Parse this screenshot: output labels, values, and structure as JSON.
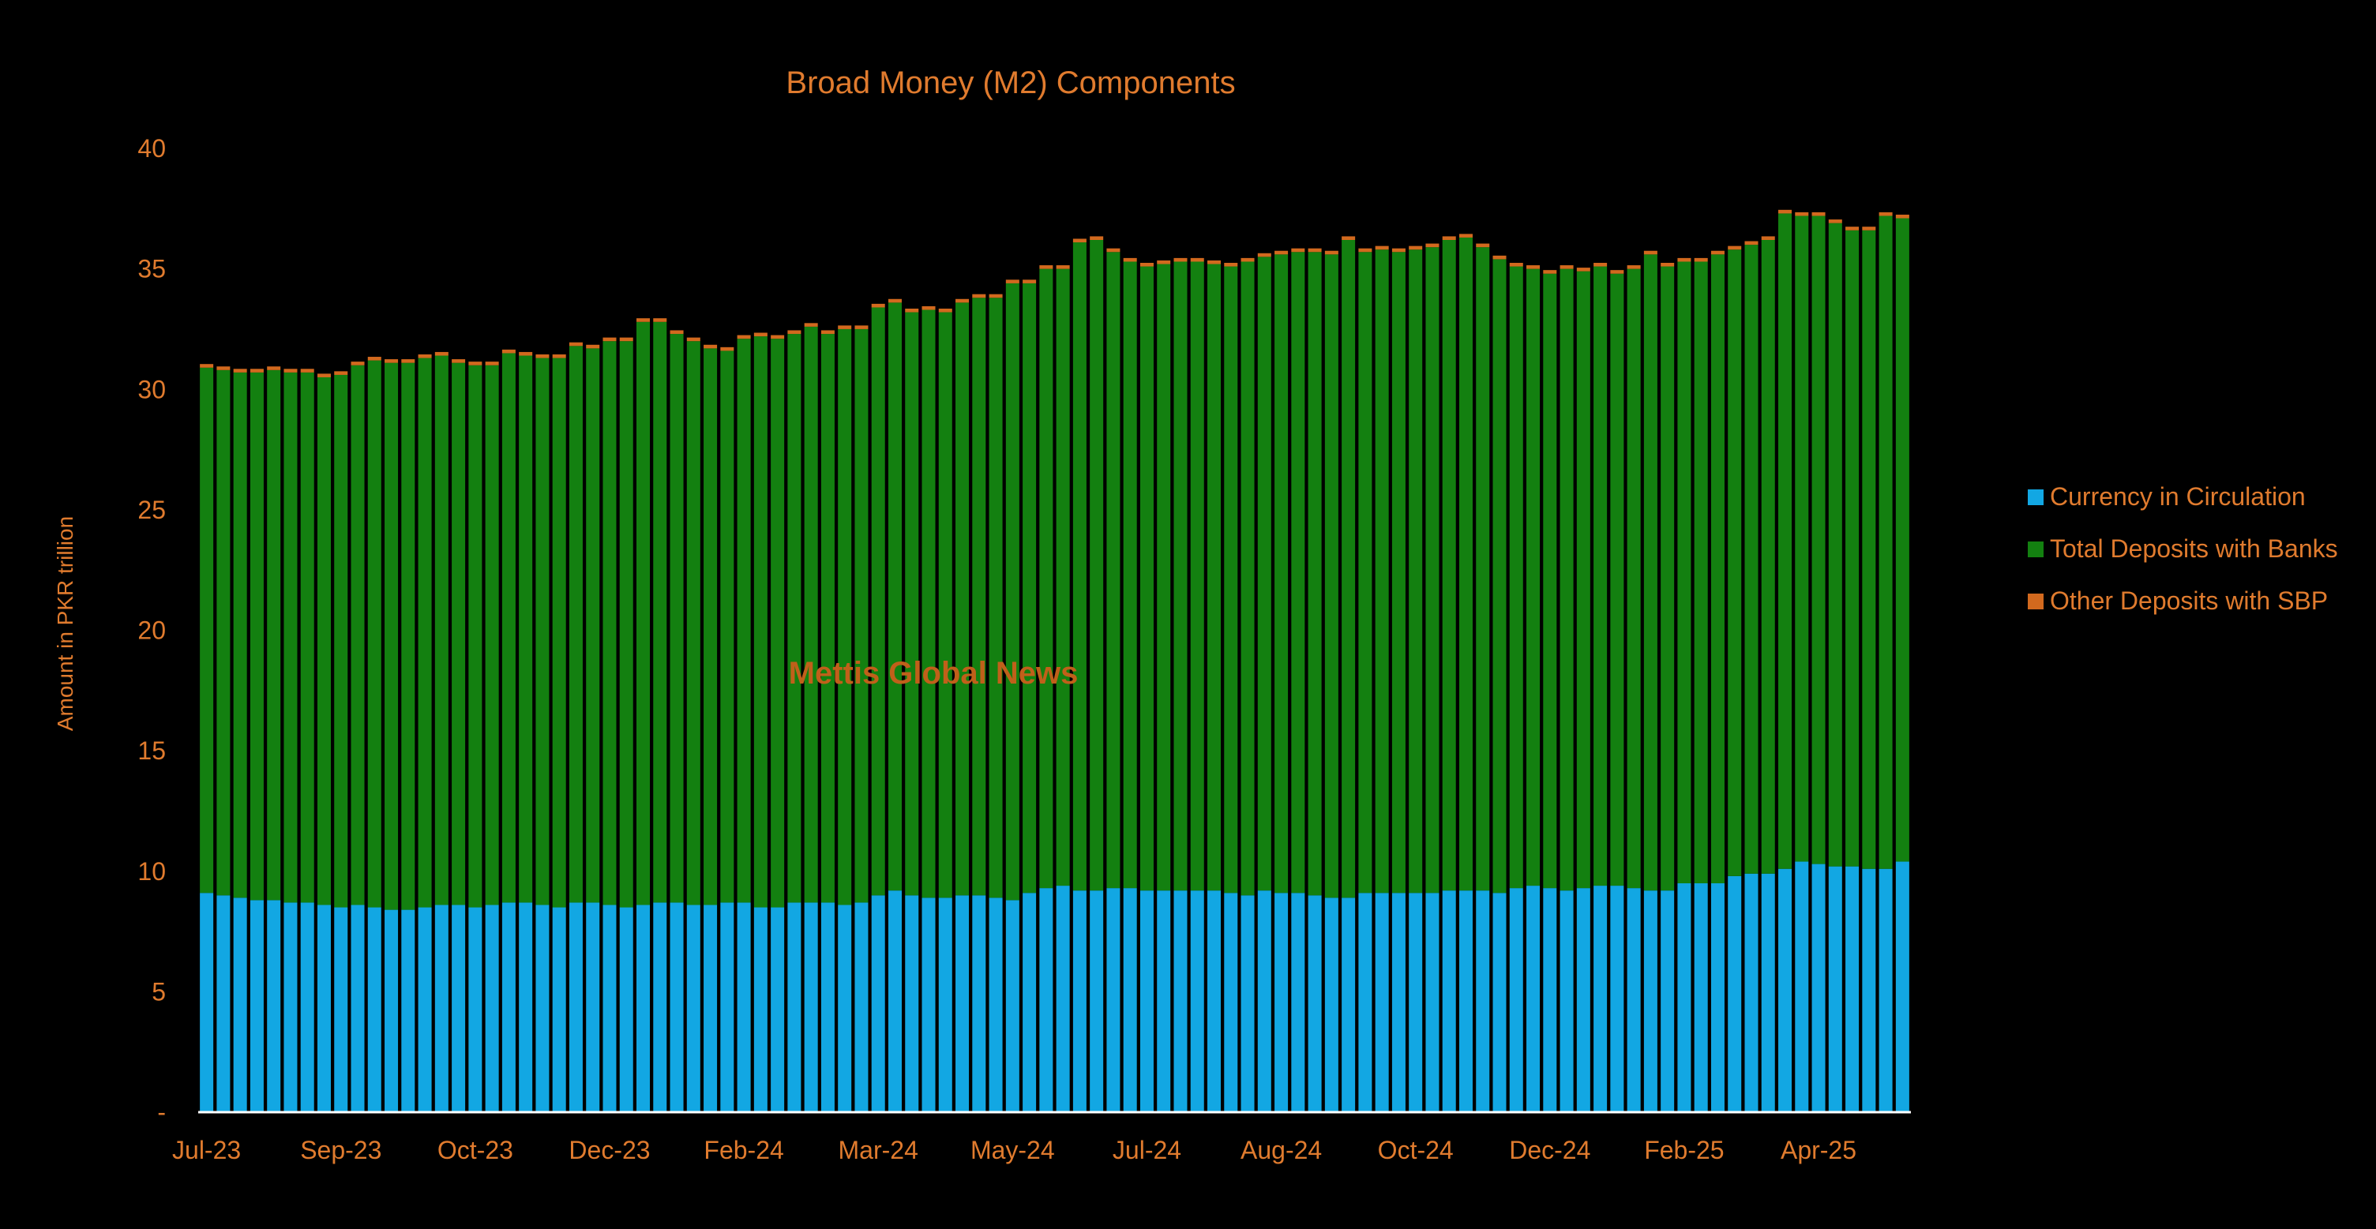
{
  "chart_data": {
    "type": "bar",
    "stacked": true,
    "title": "Broad Money (M2) Components",
    "ylabel": "Amount in PKR trillion",
    "xlabel": "",
    "ylim": [
      0,
      40
    ],
    "y_ticks": [
      "-",
      "5",
      "10",
      "15",
      "20",
      "25",
      "30",
      "35",
      "40"
    ],
    "x_tick_labels": [
      "Jul-23",
      "Sep-23",
      "Oct-23",
      "Dec-23",
      "Feb-24",
      "Mar-24",
      "May-24",
      "Jul-24",
      "Aug-24",
      "Oct-24",
      "Dec-24",
      "Feb-25",
      "Apr-25"
    ],
    "x_tick_positions": [
      0,
      8,
      16,
      24,
      32,
      40,
      48,
      56,
      64,
      72,
      80,
      88,
      96
    ],
    "legend_position": "right",
    "watermark": "Mettis Global News",
    "colors": {
      "background": "#000000",
      "text": "#E07B2E",
      "watermark": "#C0601A",
      "axis_line": "#FFFFFF"
    },
    "series": [
      {
        "name": "Currency in Circulation",
        "color": "#12A7E3",
        "values": [
          9.1,
          9.0,
          8.9,
          8.8,
          8.8,
          8.7,
          8.7,
          8.6,
          8.5,
          8.6,
          8.5,
          8.4,
          8.4,
          8.5,
          8.6,
          8.6,
          8.5,
          8.6,
          8.7,
          8.7,
          8.6,
          8.5,
          8.7,
          8.7,
          8.6,
          8.5,
          8.6,
          8.7,
          8.7,
          8.6,
          8.6,
          8.7,
          8.7,
          8.5,
          8.5,
          8.7,
          8.7,
          8.7,
          8.6,
          8.7,
          9.0,
          9.2,
          9.0,
          8.9,
          8.9,
          9.0,
          9.0,
          8.9,
          8.8,
          9.1,
          9.3,
          9.4,
          9.2,
          9.2,
          9.3,
          9.3,
          9.2,
          9.2,
          9.2,
          9.2,
          9.2,
          9.1,
          9.0,
          9.2,
          9.1,
          9.1,
          9.0,
          8.9,
          8.9,
          9.1,
          9.1,
          9.1,
          9.1,
          9.1,
          9.2,
          9.2,
          9.2,
          9.1,
          9.3,
          9.4,
          9.3,
          9.2,
          9.3,
          9.4,
          9.4,
          9.3,
          9.2,
          9.2,
          9.5,
          9.5,
          9.5,
          9.8,
          9.9,
          9.9,
          10.1,
          10.4,
          10.3,
          10.2,
          10.2,
          10.1,
          10.1,
          10.4
        ],
        "values_count": 102
      },
      {
        "name": "Total Deposits with Banks",
        "color": "#138010",
        "values": [
          21.8,
          21.8,
          21.8,
          21.9,
          22.0,
          22.0,
          22.0,
          21.9,
          22.1,
          22.4,
          22.7,
          22.7,
          22.7,
          22.8,
          22.8,
          22.5,
          22.5,
          22.4,
          22.8,
          22.7,
          22.7,
          22.8,
          23.1,
          23.0,
          23.4,
          23.5,
          24.2,
          24.1,
          23.6,
          23.4,
          23.1,
          22.9,
          23.4,
          23.7,
          23.6,
          23.6,
          23.9,
          23.6,
          23.9,
          23.8,
          24.4,
          24.4,
          24.2,
          24.4,
          24.3,
          24.6,
          24.8,
          24.9,
          25.6,
          25.3,
          25.7,
          25.6,
          26.9,
          27.0,
          26.4,
          26.0,
          25.9,
          26.0,
          26.1,
          26.1,
          26.0,
          26.0,
          26.3,
          26.3,
          26.5,
          26.6,
          26.7,
          26.7,
          27.3,
          26.6,
          26.7,
          26.6,
          26.7,
          26.8,
          27.0,
          27.1,
          26.7,
          26.3,
          25.8,
          25.6,
          25.5,
          25.8,
          25.6,
          25.7,
          25.4,
          25.7,
          26.4,
          25.9,
          25.8,
          25.8,
          26.1,
          26.0,
          26.1,
          26.3,
          27.2,
          26.8,
          26.9,
          26.7,
          26.4,
          26.5,
          27.1,
          26.7
        ],
        "values_count": 102
      },
      {
        "name": "Other Deposits with SBP",
        "color": "#D2691E",
        "values": [
          0.15,
          0.15,
          0.15,
          0.15,
          0.15,
          0.15,
          0.15,
          0.15,
          0.15,
          0.15,
          0.15,
          0.15,
          0.15,
          0.15,
          0.15,
          0.15,
          0.15,
          0.15,
          0.15,
          0.15,
          0.15,
          0.15,
          0.15,
          0.15,
          0.15,
          0.15,
          0.15,
          0.15,
          0.15,
          0.15,
          0.15,
          0.15,
          0.15,
          0.15,
          0.15,
          0.15,
          0.15,
          0.15,
          0.15,
          0.15,
          0.15,
          0.15,
          0.15,
          0.15,
          0.15,
          0.15,
          0.15,
          0.15,
          0.15,
          0.15,
          0.15,
          0.15,
          0.15,
          0.15,
          0.15,
          0.15,
          0.15,
          0.15,
          0.15,
          0.15,
          0.15,
          0.15,
          0.15,
          0.15,
          0.15,
          0.15,
          0.15,
          0.15,
          0.15,
          0.15,
          0.15,
          0.15,
          0.15,
          0.15,
          0.15,
          0.15,
          0.15,
          0.15,
          0.15,
          0.15,
          0.15,
          0.15,
          0.15,
          0.15,
          0.15,
          0.15,
          0.15,
          0.15,
          0.15,
          0.15,
          0.15,
          0.15,
          0.15,
          0.15,
          0.15,
          0.15,
          0.15,
          0.15,
          0.15,
          0.15,
          0.15,
          0.15
        ],
        "values_count": 102
      }
    ]
  }
}
